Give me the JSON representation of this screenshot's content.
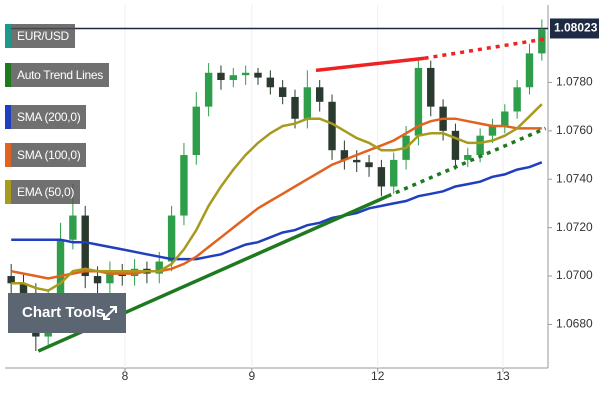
{
  "chart_data": {
    "type": "candlestick",
    "xlim": [
      0,
      44
    ],
    "xticks": [
      {
        "value": 9.72,
        "label": "8"
      },
      {
        "value": 20.0,
        "label": "9"
      },
      {
        "value": 30.2,
        "label": "12"
      },
      {
        "value": 40.35,
        "label": "13"
      }
    ],
    "ylim": [
      1.0662,
      1.0812
    ],
    "yticks": [
      {
        "value": 1.068,
        "label": "1.0680"
      },
      {
        "value": 1.07,
        "label": "1.0700"
      },
      {
        "value": 1.072,
        "label": "1.0720"
      },
      {
        "value": 1.074,
        "label": "1.0740"
      },
      {
        "value": 1.076,
        "label": "1.0760"
      },
      {
        "value": 1.078,
        "label": "1.0780"
      }
    ],
    "grid": "x",
    "last_price": 1.08023,
    "last_price_color": "#1e2a44",
    "up_color": "#2f9e4a",
    "down_color": "#2b3a2f",
    "series": [
      {
        "name": "EUR/USD",
        "color": "#1b998b",
        "type": "candlestick",
        "open": [
          1.07,
          1.0697,
          1.0693,
          1.0675,
          1.069,
          1.0715,
          1.0725,
          1.07,
          1.0697,
          1.0702,
          1.07,
          1.0703,
          1.0701,
          1.0706,
          1.0725,
          1.075,
          1.077,
          1.0784,
          1.0781,
          1.0783,
          1.0784,
          1.0782,
          1.0778,
          1.0774,
          1.0765,
          1.0778,
          1.0772,
          1.0752,
          1.0748,
          1.0747,
          1.0745,
          1.0737,
          1.0748,
          1.0758,
          1.0786,
          1.077,
          1.076,
          1.0748,
          1.075,
          1.0758,
          1.0762,
          1.0768,
          1.0778,
          1.0792
        ],
        "high": [
          1.0705,
          1.0701,
          1.0697,
          1.0694,
          1.0722,
          1.0738,
          1.0729,
          1.0704,
          1.0706,
          1.0705,
          1.0707,
          1.0706,
          1.071,
          1.0729,
          1.0755,
          1.0776,
          1.0788,
          1.0787,
          1.0786,
          1.0787,
          1.0786,
          1.0785,
          1.0781,
          1.0777,
          1.0785,
          1.0781,
          1.0775,
          1.0756,
          1.0752,
          1.075,
          1.0748,
          1.0751,
          1.0762,
          1.079,
          1.0789,
          1.0773,
          1.0763,
          1.0753,
          1.0761,
          1.0765,
          1.0771,
          1.0781,
          1.0796,
          1.0806
        ],
        "low": [
          1.0692,
          1.0688,
          1.0669,
          1.0671,
          1.0686,
          1.0711,
          1.0695,
          1.0692,
          1.0693,
          1.0696,
          1.0696,
          1.0697,
          1.0697,
          1.0702,
          1.0721,
          1.0746,
          1.0766,
          1.0777,
          1.0778,
          1.0779,
          1.0779,
          1.0775,
          1.0771,
          1.0761,
          1.0761,
          1.0768,
          1.0748,
          1.0744,
          1.0743,
          1.0741,
          1.0733,
          1.0734,
          1.0744,
          1.0754,
          1.0766,
          1.0756,
          1.0744,
          1.0745,
          1.0747,
          1.0755,
          1.0759,
          1.0765,
          1.0775,
          1.0789
        ],
        "close": [
          1.0697,
          1.0693,
          1.0675,
          1.069,
          1.0715,
          1.0725,
          1.07,
          1.0697,
          1.0702,
          1.07,
          1.0703,
          1.0701,
          1.0706,
          1.0725,
          1.075,
          1.077,
          1.0784,
          1.0781,
          1.0783,
          1.0784,
          1.0782,
          1.0778,
          1.0774,
          1.0765,
          1.0778,
          1.0772,
          1.0752,
          1.0748,
          1.0747,
          1.0745,
          1.0737,
          1.0748,
          1.0758,
          1.0786,
          1.077,
          1.076,
          1.0748,
          1.075,
          1.0758,
          1.0762,
          1.0768,
          1.0778,
          1.0792,
          1.0802
        ]
      },
      {
        "name": "Auto Trend Lines",
        "color": "#1f7a1f",
        "type": "trend",
        "lines": [
          {
            "color": "#1f7a1f",
            "x": [
              2.7,
              31.0,
              43.8
            ],
            "y": [
              1.0669,
              1.0733,
              1.0761
            ]
          },
          {
            "color": "#ee2222",
            "x": [
              25.2,
              34.0,
              43.8
            ],
            "y": [
              1.0785,
              1.079,
              1.0798
            ]
          }
        ]
      },
      {
        "name": "SMA (200,0)",
        "color": "#1f3fbf",
        "type": "line",
        "values": [
          1.0715,
          1.0715,
          1.0715,
          1.0715,
          1.0715,
          1.0714,
          1.0714,
          1.0713,
          1.0712,
          1.0711,
          1.071,
          1.0709,
          1.0708,
          1.0707,
          1.0707,
          1.0707,
          1.0708,
          1.0709,
          1.0711,
          1.0713,
          1.0714,
          1.0716,
          1.0718,
          1.0719,
          1.0721,
          1.0722,
          1.0724,
          1.0725,
          1.0726,
          1.0728,
          1.0729,
          1.073,
          1.0731,
          1.0733,
          1.0734,
          1.0735,
          1.0737,
          1.0738,
          1.0739,
          1.0741,
          1.0742,
          1.0744,
          1.0745,
          1.0747
        ]
      },
      {
        "name": "SMA (100,0)",
        "color": "#e0631f",
        "type": "line",
        "values": [
          1.0702,
          1.0701,
          1.07,
          1.0699,
          1.07,
          1.0701,
          1.0702,
          1.0702,
          1.0701,
          1.0701,
          1.0701,
          1.0702,
          1.0702,
          1.0703,
          1.0705,
          1.0708,
          1.0712,
          1.0716,
          1.072,
          1.0724,
          1.0728,
          1.0731,
          1.0734,
          1.0737,
          1.074,
          1.0743,
          1.0746,
          1.0748,
          1.075,
          1.0752,
          1.0754,
          1.0756,
          1.0759,
          1.0762,
          1.0764,
          1.0765,
          1.0765,
          1.0764,
          1.0763,
          1.0762,
          1.0762,
          1.0761,
          1.0761,
          1.0761
        ]
      },
      {
        "name": "EMA (50,0)",
        "color": "#a89a1f",
        "type": "line",
        "values": [
          1.0697,
          1.0697,
          1.0695,
          1.0694,
          1.0697,
          1.0702,
          1.0703,
          1.0702,
          1.0702,
          1.0702,
          1.0702,
          1.0702,
          1.0702,
          1.0705,
          1.0711,
          1.0719,
          1.0729,
          1.0737,
          1.0744,
          1.075,
          1.0755,
          1.0759,
          1.0762,
          1.0763,
          1.0765,
          1.0765,
          1.0763,
          1.076,
          1.0757,
          1.0755,
          1.0752,
          1.0752,
          1.0753,
          1.0758,
          1.0759,
          1.0759,
          1.0757,
          1.0755,
          1.0755,
          1.0756,
          1.0758,
          1.0761,
          1.0766,
          1.0771
        ]
      }
    ],
    "chart_tools_label": "Chart Tools"
  }
}
